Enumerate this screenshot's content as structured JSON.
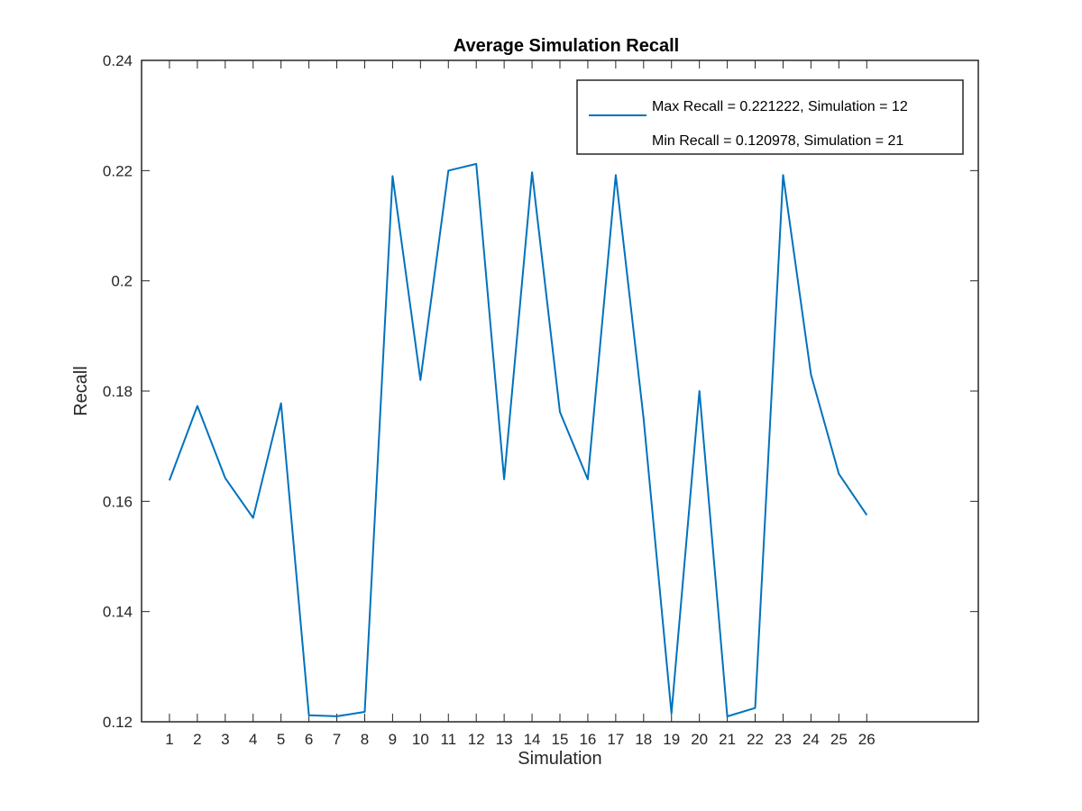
{
  "chart_data": {
    "type": "line",
    "title": "Average Simulation Recall",
    "xlabel": "Simulation",
    "ylabel": "Recall",
    "xlim": [
      0,
      30
    ],
    "ylim": [
      0.12,
      0.24
    ],
    "xticks": [
      1,
      2,
      3,
      4,
      5,
      6,
      7,
      8,
      9,
      10,
      11,
      12,
      13,
      14,
      15,
      16,
      17,
      18,
      19,
      20,
      21,
      22,
      23,
      24,
      25,
      26
    ],
    "yticks": [
      0.12,
      0.14,
      0.16,
      0.18,
      0.2,
      0.22,
      0.24
    ],
    "ytick_labels": [
      "0.12",
      "0.14",
      "0.16",
      "0.18",
      "0.2",
      "0.22",
      "0.24"
    ],
    "grid": false,
    "legend_position": "top-right",
    "series": [
      {
        "color": "#0072BD",
        "x": [
          1,
          2,
          3,
          4,
          5,
          6,
          7,
          8,
          9,
          10,
          11,
          12,
          13,
          14,
          15,
          16,
          17,
          18,
          19,
          20,
          21,
          22,
          23,
          24,
          25,
          26
        ],
        "values": [
          0.1638,
          0.1773,
          0.1642,
          0.157,
          0.1778,
          0.1212,
          0.121,
          0.1218,
          0.219,
          0.182,
          0.22,
          0.221222,
          0.164,
          0.2197,
          0.1762,
          0.164,
          0.2192,
          0.175,
          0.1215,
          0.18,
          0.120978,
          0.1225,
          0.2192,
          0.183,
          0.165,
          0.1575
        ]
      }
    ],
    "legend": [
      {
        "label": "Max Recall = 0.221222, Simulation = 12",
        "has_line": true
      },
      {
        "label": "Min Recall = 0.120978, Simulation = 21",
        "has_line": false
      }
    ]
  }
}
